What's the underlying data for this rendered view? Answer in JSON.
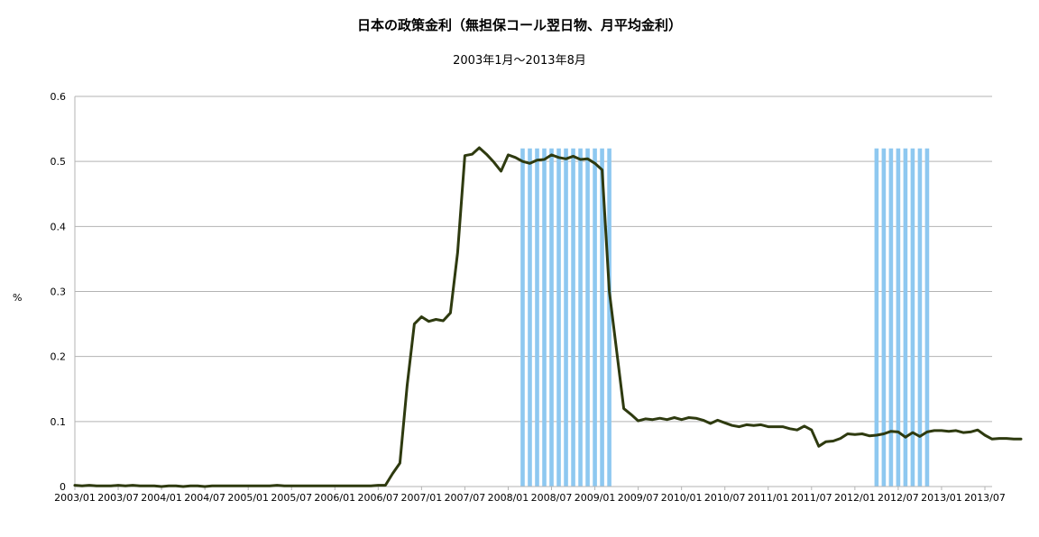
{
  "chart_data": {
    "type": "line",
    "title": "日本の政策金利（無担保コール翌日物、月平均金利）",
    "subtitle": "2003年1月～2013年8月",
    "xlabel": "",
    "ylabel": "%",
    "ylim": [
      0,
      0.6
    ],
    "yticks": [
      "0",
      "0.1",
      "0.2",
      "0.3",
      "0.4",
      "0.5",
      "0.6"
    ],
    "grid": "horizontal",
    "legend": "none",
    "line_color": "#2e3a0f",
    "shade_color": "#8ec8f0",
    "xtick_labels": [
      "2003/01",
      "2003/07",
      "2004/01",
      "2004/07",
      "2005/01",
      "2005/07",
      "2006/01",
      "2006/07",
      "2007/01",
      "2007/07",
      "2008/01",
      "2008/07",
      "2009/01",
      "2009/07",
      "2010/01",
      "2010/07",
      "2011/01",
      "2011/07",
      "2012/01",
      "2012/07",
      "2013/01",
      "2013/07"
    ],
    "x_start": "2003/01",
    "x_end": "2013/08",
    "shaded_periods": [
      {
        "from": "2008/03",
        "to": "2009/03",
        "value": 0.52
      },
      {
        "from": "2012/04",
        "to": "2012/11",
        "value": 0.52
      }
    ],
    "series": [
      {
        "values": [
          0.002,
          0.001,
          0.002,
          0.001,
          0.001,
          0.001,
          0.002,
          0.001,
          0.002,
          0.001,
          0.001,
          0.001,
          0.0,
          0.001,
          0.001,
          0.0,
          0.001,
          0.001,
          0.0,
          0.001,
          0.001,
          0.001,
          0.001,
          0.001,
          0.001,
          0.001,
          0.001,
          0.001,
          0.002,
          0.001,
          0.001,
          0.001,
          0.001,
          0.001,
          0.001,
          0.001,
          0.001,
          0.001,
          0.001,
          0.001,
          0.001,
          0.001,
          0.002,
          0.002,
          0.02,
          0.036,
          0.155,
          0.25,
          0.261,
          0.254,
          0.257,
          0.255,
          0.267,
          0.36,
          0.509,
          0.511,
          0.521,
          0.511,
          0.499,
          0.485,
          0.51,
          0.506,
          0.5,
          0.497,
          0.502,
          0.503,
          0.51,
          0.506,
          0.504,
          0.508,
          0.503,
          0.504,
          0.497,
          0.487,
          0.3,
          0.21,
          0.12,
          0.111,
          0.101,
          0.104,
          0.103,
          0.105,
          0.103,
          0.106,
          0.103,
          0.106,
          0.105,
          0.102,
          0.097,
          0.102,
          0.098,
          0.094,
          0.092,
          0.095,
          0.094,
          0.095,
          0.092,
          0.092,
          0.092,
          0.089,
          0.087,
          0.093,
          0.087,
          0.062,
          0.069,
          0.07,
          0.074,
          0.081,
          0.08,
          0.081,
          0.078,
          0.079,
          0.081,
          0.085,
          0.084,
          0.076,
          0.083,
          0.077,
          0.084,
          0.086,
          0.086,
          0.085,
          0.086,
          0.083,
          0.084,
          0.087,
          0.079,
          0.073,
          0.074,
          0.074,
          0.073,
          0.073
        ]
      }
    ]
  }
}
